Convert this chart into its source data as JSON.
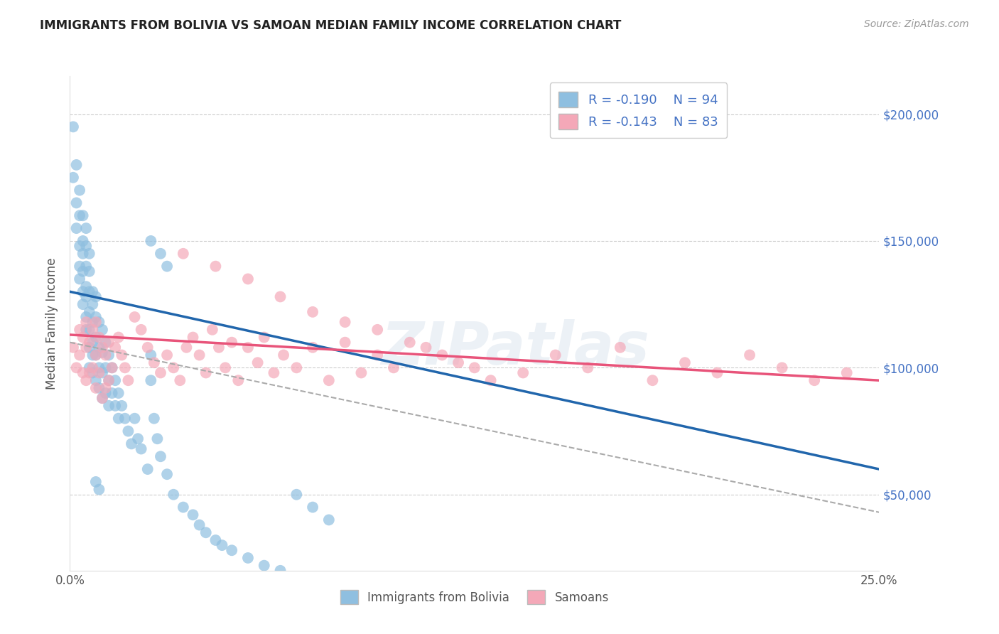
{
  "title": "IMMIGRANTS FROM BOLIVIA VS SAMOAN MEDIAN FAMILY INCOME CORRELATION CHART",
  "source_text": "Source: ZipAtlas.com",
  "ylabel": "Median Family Income",
  "xlim": [
    0.0,
    0.25
  ],
  "ylim": [
    20000,
    215000
  ],
  "ytick_values": [
    50000,
    100000,
    150000,
    200000
  ],
  "blue_color": "#8fbfe0",
  "pink_color": "#f4a8b8",
  "blue_line_color": "#2166ac",
  "pink_line_color": "#e8547a",
  "gray_dash_color": "#aaaaaa",
  "legend_label_blue": "Immigrants from Bolivia",
  "legend_label_pink": "Samoans",
  "watermark_text": "ZIPatlas",
  "blue_line_x0": 0.0,
  "blue_line_y0": 130000,
  "blue_line_x1": 0.25,
  "blue_line_y1": 60000,
  "pink_line_x0": 0.0,
  "pink_line_y0": 113000,
  "pink_line_x1": 0.25,
  "pink_line_y1": 95000,
  "gray_line_x0": 0.0,
  "gray_line_y0": 110000,
  "gray_line_x1": 0.25,
  "gray_line_y1": 43000,
  "blue_scatter_x": [
    0.001,
    0.001,
    0.002,
    0.002,
    0.002,
    0.003,
    0.003,
    0.003,
    0.003,
    0.003,
    0.004,
    0.004,
    0.004,
    0.004,
    0.004,
    0.004,
    0.005,
    0.005,
    0.005,
    0.005,
    0.005,
    0.005,
    0.005,
    0.006,
    0.006,
    0.006,
    0.006,
    0.006,
    0.006,
    0.006,
    0.007,
    0.007,
    0.007,
    0.007,
    0.007,
    0.007,
    0.008,
    0.008,
    0.008,
    0.008,
    0.008,
    0.009,
    0.009,
    0.009,
    0.009,
    0.01,
    0.01,
    0.01,
    0.01,
    0.011,
    0.011,
    0.011,
    0.012,
    0.012,
    0.012,
    0.013,
    0.013,
    0.014,
    0.014,
    0.015,
    0.015,
    0.016,
    0.017,
    0.018,
    0.019,
    0.02,
    0.021,
    0.022,
    0.024,
    0.025,
    0.025,
    0.026,
    0.027,
    0.028,
    0.03,
    0.032,
    0.035,
    0.038,
    0.04,
    0.042,
    0.045,
    0.047,
    0.05,
    0.055,
    0.06,
    0.065,
    0.07,
    0.075,
    0.08,
    0.025,
    0.028,
    0.03,
    0.008,
    0.009
  ],
  "blue_scatter_y": [
    195000,
    175000,
    180000,
    165000,
    155000,
    170000,
    160000,
    148000,
    140000,
    135000,
    160000,
    150000,
    145000,
    138000,
    130000,
    125000,
    155000,
    148000,
    140000,
    132000,
    128000,
    120000,
    115000,
    145000,
    138000,
    130000,
    122000,
    115000,
    108000,
    100000,
    130000,
    125000,
    118000,
    110000,
    105000,
    98000,
    128000,
    120000,
    112000,
    105000,
    95000,
    118000,
    108000,
    100000,
    92000,
    115000,
    106000,
    98000,
    88000,
    110000,
    100000,
    90000,
    105000,
    95000,
    85000,
    100000,
    90000,
    95000,
    85000,
    90000,
    80000,
    85000,
    80000,
    75000,
    70000,
    80000,
    72000,
    68000,
    60000,
    105000,
    95000,
    80000,
    72000,
    65000,
    58000,
    50000,
    45000,
    42000,
    38000,
    35000,
    32000,
    30000,
    28000,
    25000,
    22000,
    20000,
    50000,
    45000,
    40000,
    150000,
    145000,
    140000,
    55000,
    52000
  ],
  "pink_scatter_x": [
    0.001,
    0.002,
    0.003,
    0.003,
    0.004,
    0.004,
    0.005,
    0.005,
    0.005,
    0.006,
    0.006,
    0.007,
    0.007,
    0.008,
    0.008,
    0.008,
    0.009,
    0.009,
    0.01,
    0.01,
    0.011,
    0.011,
    0.012,
    0.012,
    0.013,
    0.014,
    0.015,
    0.016,
    0.017,
    0.018,
    0.02,
    0.022,
    0.024,
    0.026,
    0.028,
    0.03,
    0.032,
    0.034,
    0.036,
    0.038,
    0.04,
    0.042,
    0.044,
    0.046,
    0.048,
    0.05,
    0.052,
    0.055,
    0.058,
    0.06,
    0.063,
    0.066,
    0.07,
    0.075,
    0.08,
    0.085,
    0.09,
    0.095,
    0.1,
    0.11,
    0.12,
    0.13,
    0.14,
    0.15,
    0.16,
    0.17,
    0.18,
    0.19,
    0.2,
    0.21,
    0.22,
    0.23,
    0.24,
    0.035,
    0.045,
    0.055,
    0.065,
    0.075,
    0.085,
    0.095,
    0.105,
    0.115,
    0.125
  ],
  "pink_scatter_y": [
    108000,
    100000,
    115000,
    105000,
    112000,
    98000,
    118000,
    108000,
    95000,
    110000,
    98000,
    115000,
    100000,
    118000,
    105000,
    92000,
    112000,
    98000,
    108000,
    88000,
    105000,
    92000,
    110000,
    95000,
    100000,
    108000,
    112000,
    105000,
    100000,
    95000,
    120000,
    115000,
    108000,
    102000,
    98000,
    105000,
    100000,
    95000,
    108000,
    112000,
    105000,
    98000,
    115000,
    108000,
    100000,
    110000,
    95000,
    108000,
    102000,
    112000,
    98000,
    105000,
    100000,
    108000,
    95000,
    110000,
    98000,
    105000,
    100000,
    108000,
    102000,
    95000,
    98000,
    105000,
    100000,
    108000,
    95000,
    102000,
    98000,
    105000,
    100000,
    95000,
    98000,
    145000,
    140000,
    135000,
    128000,
    122000,
    118000,
    115000,
    110000,
    105000,
    100000
  ]
}
